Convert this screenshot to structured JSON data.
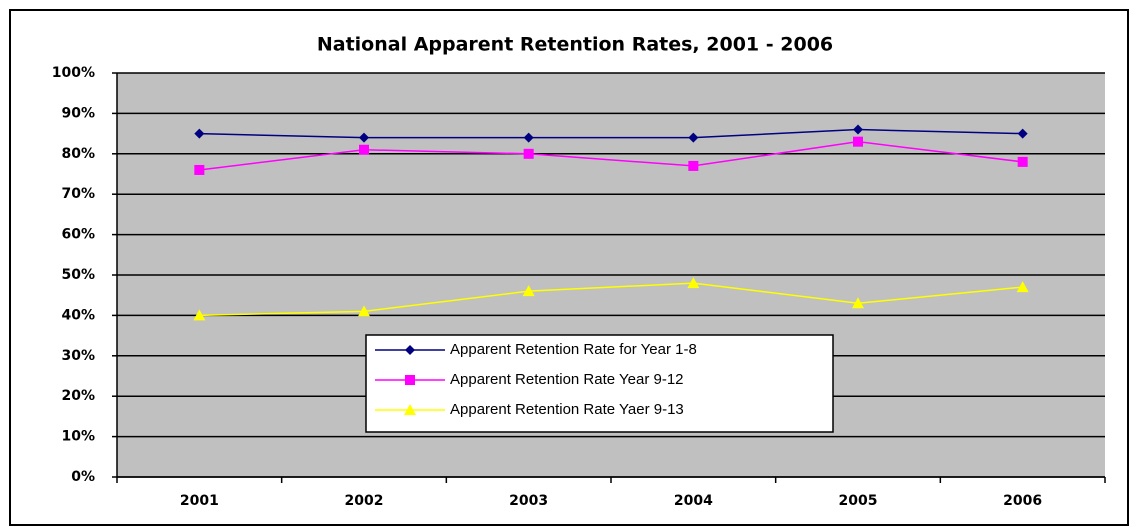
{
  "chart_data": {
    "type": "line",
    "title": "National Apparent Retention Rates, 2001 - 2006",
    "categories": [
      "2001",
      "2002",
      "2003",
      "2004",
      "2005",
      "2006"
    ],
    "series": [
      {
        "name": "Apparent Retention Rate for Year 1-8",
        "color": "#000080",
        "marker": "diamond",
        "values": [
          85,
          84,
          84,
          84,
          86,
          85
        ]
      },
      {
        "name": "Apparent Retention Rate Year 9-12",
        "color": "#ff00ff",
        "marker": "square",
        "values": [
          76,
          81,
          80,
          77,
          83,
          78
        ]
      },
      {
        "name": "Apparent Retention Rate Yaer 9-13",
        "color": "#ffff00",
        "marker": "triangle",
        "values": [
          40,
          41,
          46,
          48,
          43,
          47
        ]
      }
    ],
    "ylim": [
      0,
      100
    ],
    "yticks": [
      {
        "value": 0,
        "label": "0%"
      },
      {
        "value": 10,
        "label": "10%"
      },
      {
        "value": 20,
        "label": "20%"
      },
      {
        "value": 30,
        "label": "30%"
      },
      {
        "value": 40,
        "label": "40%"
      },
      {
        "value": 50,
        "label": "50%"
      },
      {
        "value": 60,
        "label": "60%"
      },
      {
        "value": 70,
        "label": "70%"
      },
      {
        "value": 80,
        "label": "80%"
      },
      {
        "value": 90,
        "label": "90%"
      },
      {
        "value": 100,
        "label": "100%"
      }
    ],
    "grid": true,
    "plot_background": "#c0c0c0"
  }
}
